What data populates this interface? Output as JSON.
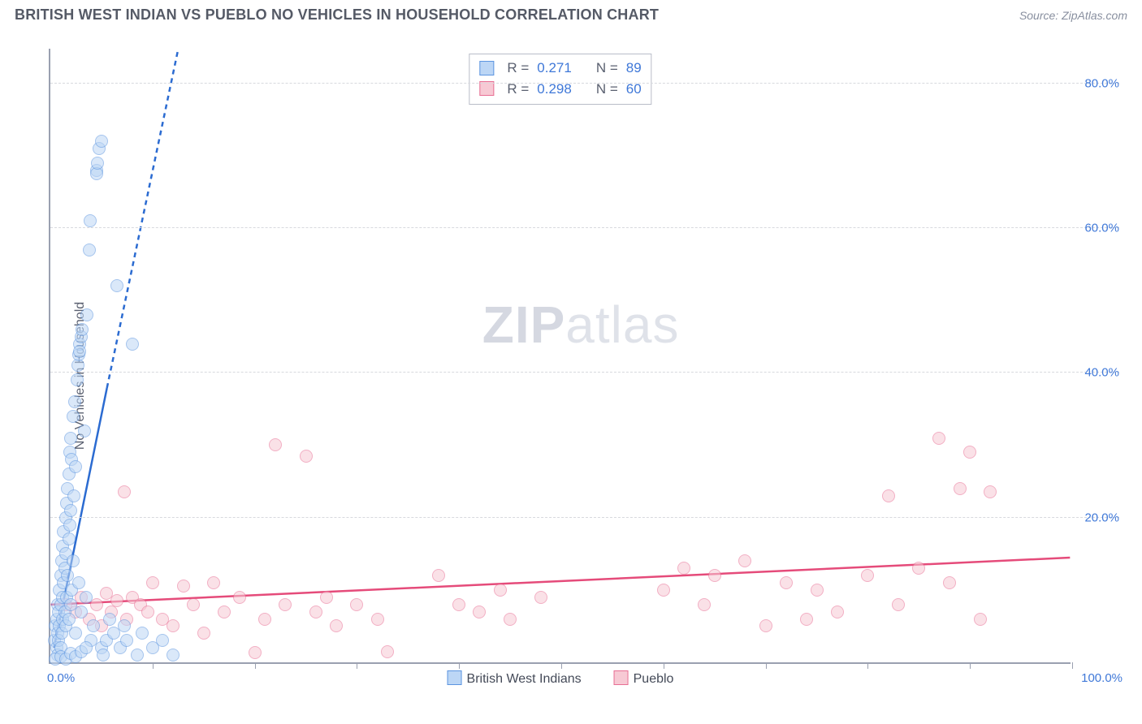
{
  "header": {
    "title": "BRITISH WEST INDIAN VS PUEBLO NO VEHICLES IN HOUSEHOLD CORRELATION CHART",
    "source_prefix": "Source: ",
    "source": "ZipAtlas.com"
  },
  "ylabel": "No Vehicles in Household",
  "watermark": {
    "bold": "ZIP",
    "rest": "atlas"
  },
  "chart": {
    "type": "scatter",
    "xlim": [
      0,
      100
    ],
    "ylim": [
      0,
      85
    ],
    "x_tick_positions": [
      10,
      20,
      30,
      40,
      50,
      60,
      70,
      80,
      90,
      100
    ],
    "x_label_min": "0.0%",
    "x_label_max": "100.0%",
    "y_gridlines": [
      20,
      40,
      60,
      80
    ],
    "y_tick_labels": [
      "20.0%",
      "40.0%",
      "60.0%",
      "80.0%"
    ],
    "grid_color": "#d7d9de",
    "axis_color": "#9aa0b0",
    "label_color": "#3f78d8",
    "background_color": "#ffffff",
    "title_fontsize": 18,
    "label_fontsize": 16,
    "tick_fontsize": 15,
    "marker_radius": 8,
    "marker_stroke_width": 1.2,
    "trend_line_width": 2.5
  },
  "series": {
    "a": {
      "label": "British West Indians",
      "fill": "#bcd6f5",
      "stroke": "#5c95e0",
      "fill_opacity": 0.55,
      "trend_color": "#2b6bd1",
      "trend_solid": {
        "x1": 0.3,
        "y1": 2,
        "x2": 5.5,
        "y2": 38
      },
      "trend_dash": {
        "x1": 5.5,
        "y1": 38,
        "x2": 12.5,
        "y2": 85
      },
      "R": "0.271",
      "N": "89",
      "points": [
        [
          0.4,
          3
        ],
        [
          0.5,
          5
        ],
        [
          0.6,
          2
        ],
        [
          0.6,
          6
        ],
        [
          0.7,
          4
        ],
        [
          0.7,
          1
        ],
        [
          0.7,
          8
        ],
        [
          0.8,
          3
        ],
        [
          0.8,
          7
        ],
        [
          0.9,
          10
        ],
        [
          0.9,
          5
        ],
        [
          1.0,
          12
        ],
        [
          1.0,
          2
        ],
        [
          1.0,
          8
        ],
        [
          1.1,
          14
        ],
        [
          1.1,
          4
        ],
        [
          1.2,
          16
        ],
        [
          1.2,
          6
        ],
        [
          1.2,
          9
        ],
        [
          1.3,
          11
        ],
        [
          1.3,
          18
        ],
        [
          1.4,
          7
        ],
        [
          1.4,
          13
        ],
        [
          1.5,
          20
        ],
        [
          1.5,
          5
        ],
        [
          1.5,
          15
        ],
        [
          1.6,
          22
        ],
        [
          1.6,
          9
        ],
        [
          1.7,
          24
        ],
        [
          1.7,
          12
        ],
        [
          1.8,
          26
        ],
        [
          1.8,
          6
        ],
        [
          1.8,
          17
        ],
        [
          1.9,
          29
        ],
        [
          1.9,
          19
        ],
        [
          2.0,
          8
        ],
        [
          2.0,
          31
        ],
        [
          2.0,
          21
        ],
        [
          2.1,
          10
        ],
        [
          2.1,
          28
        ],
        [
          2.2,
          34
        ],
        [
          2.2,
          14
        ],
        [
          2.3,
          23
        ],
        [
          2.4,
          36
        ],
        [
          2.5,
          4
        ],
        [
          2.5,
          27
        ],
        [
          2.6,
          39
        ],
        [
          2.7,
          41
        ],
        [
          2.8,
          11
        ],
        [
          2.8,
          42.5
        ],
        [
          2.9,
          44
        ],
        [
          2.9,
          43
        ],
        [
          3.0,
          45
        ],
        [
          3.0,
          7
        ],
        [
          3.1,
          46
        ],
        [
          3.3,
          32
        ],
        [
          3.5,
          9
        ],
        [
          3.6,
          48
        ],
        [
          3.8,
          57
        ],
        [
          3.9,
          61
        ],
        [
          4.0,
          3
        ],
        [
          4.2,
          5
        ],
        [
          4.5,
          68
        ],
        [
          4.5,
          67.5
        ],
        [
          4.6,
          69
        ],
        [
          4.8,
          71
        ],
        [
          5.0,
          72
        ],
        [
          5.0,
          2
        ],
        [
          5.2,
          1
        ],
        [
          5.5,
          3
        ],
        [
          5.8,
          6
        ],
        [
          6.2,
          4
        ],
        [
          6.5,
          52
        ],
        [
          6.8,
          2
        ],
        [
          7.2,
          5
        ],
        [
          7.5,
          3
        ],
        [
          8.0,
          44
        ],
        [
          8.5,
          1
        ],
        [
          9.0,
          4
        ],
        [
          10.0,
          2
        ],
        [
          11.0,
          3
        ],
        [
          12.0,
          1
        ],
        [
          0.5,
          0.5
        ],
        [
          1.0,
          0.8
        ],
        [
          1.5,
          0.5
        ],
        [
          2.0,
          1.2
        ],
        [
          2.5,
          0.8
        ],
        [
          3.0,
          1.5
        ],
        [
          3.5,
          2
        ]
      ]
    },
    "b": {
      "label": "Pueblo",
      "fill": "#f7c9d4",
      "stroke": "#e86f94",
      "fill_opacity": 0.55,
      "trend_color": "#e54b7a",
      "trend_solid": {
        "x1": 0,
        "y1": 8,
        "x2": 100,
        "y2": 14.5
      },
      "R": "0.298",
      "N": "60",
      "points": [
        [
          1.5,
          8
        ],
        [
          2.5,
          7
        ],
        [
          3.0,
          9
        ],
        [
          3.8,
          6
        ],
        [
          4.5,
          8
        ],
        [
          5.0,
          5
        ],
        [
          5.5,
          9.5
        ],
        [
          6.0,
          7
        ],
        [
          6.5,
          8.5
        ],
        [
          7.2,
          23.5
        ],
        [
          7.5,
          6
        ],
        [
          8.0,
          9
        ],
        [
          8.8,
          8
        ],
        [
          9.5,
          7
        ],
        [
          10.0,
          11
        ],
        [
          11.0,
          6
        ],
        [
          12.0,
          5
        ],
        [
          13.0,
          10.5
        ],
        [
          14.0,
          8
        ],
        [
          15.0,
          4
        ],
        [
          16.0,
          11
        ],
        [
          17.0,
          7
        ],
        [
          18.5,
          9
        ],
        [
          20.0,
          1.4
        ],
        [
          21.0,
          6
        ],
        [
          22.0,
          30
        ],
        [
          23.0,
          8
        ],
        [
          25.0,
          28.5
        ],
        [
          26.0,
          7
        ],
        [
          27.0,
          9
        ],
        [
          28.0,
          5
        ],
        [
          30.0,
          8
        ],
        [
          32.0,
          6
        ],
        [
          33.0,
          1.5
        ],
        [
          38.0,
          12
        ],
        [
          40.0,
          8
        ],
        [
          42.0,
          7
        ],
        [
          44.0,
          10
        ],
        [
          45.0,
          6
        ],
        [
          48.0,
          9
        ],
        [
          60.0,
          10
        ],
        [
          62.0,
          13
        ],
        [
          64.0,
          8
        ],
        [
          65.0,
          12
        ],
        [
          68.0,
          14
        ],
        [
          70.0,
          5
        ],
        [
          72.0,
          11
        ],
        [
          74.0,
          6
        ],
        [
          75.0,
          10
        ],
        [
          77.0,
          7
        ],
        [
          80.0,
          12
        ],
        [
          82.0,
          23
        ],
        [
          83.0,
          8
        ],
        [
          85.0,
          13
        ],
        [
          87.0,
          31
        ],
        [
          88.0,
          11
        ],
        [
          89.0,
          24
        ],
        [
          90.0,
          29
        ],
        [
          91.0,
          6
        ],
        [
          92.0,
          23.5
        ]
      ]
    }
  },
  "correlation_box": {
    "rows": [
      {
        "series": "a",
        "R_label": "R  =",
        "N_label": "N  ="
      },
      {
        "series": "b",
        "R_label": "R  =",
        "N_label": "N  ="
      }
    ]
  },
  "bottom_legend": [
    {
      "series": "a"
    },
    {
      "series": "b"
    }
  ]
}
